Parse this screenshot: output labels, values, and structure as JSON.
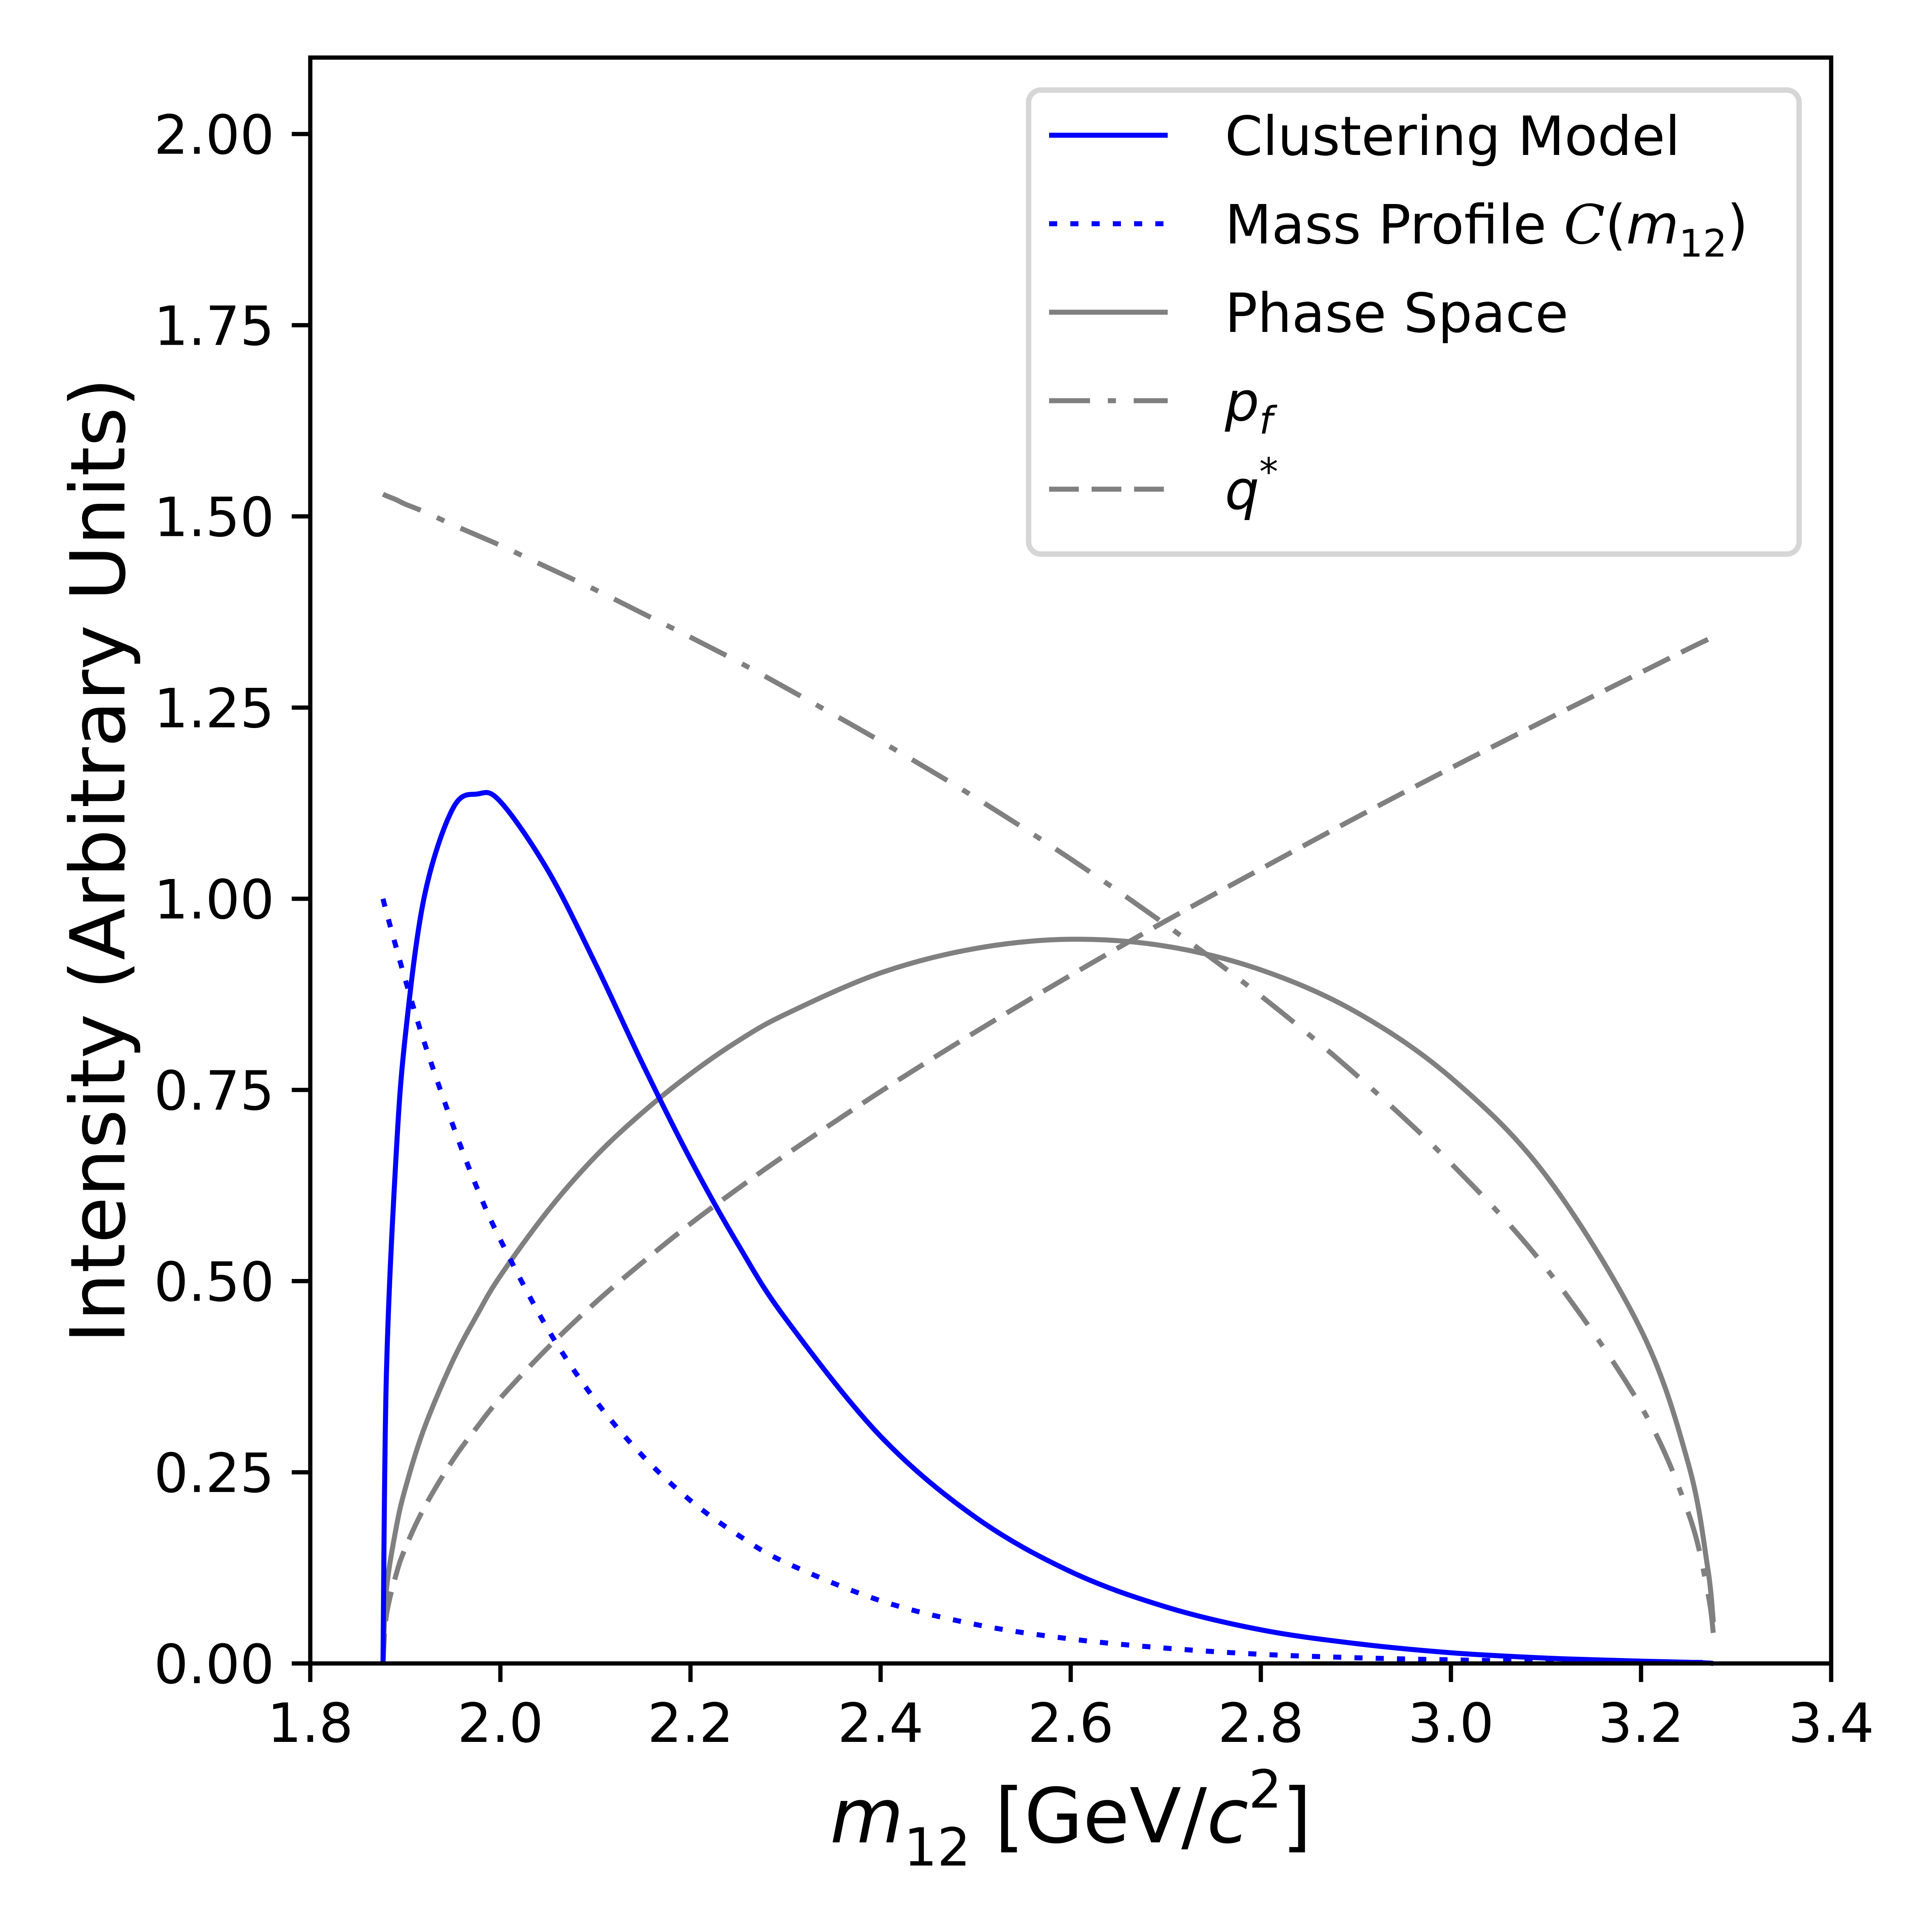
{
  "chart_data": {
    "type": "line",
    "title": "",
    "xlabel": "m12 [GeV/c2]",
    "xlabel_parts": {
      "var": "m",
      "sub": "12",
      "unit_open": " [GeV/",
      "unit_var": "c",
      "unit_sup": "2",
      "unit_close": "]"
    },
    "ylabel": "Intensity (Arbitrary Units)",
    "xlim": [
      1.8,
      3.4
    ],
    "ylim": [
      0.0,
      2.1
    ],
    "grid": false,
    "legend_position": "top-right",
    "xticks": [
      "1.8",
      "2.0",
      "2.2",
      "2.4",
      "2.6",
      "2.8",
      "3.0",
      "3.2",
      "3.4"
    ],
    "xtick_values": [
      1.8,
      2.0,
      2.2,
      2.4,
      2.6,
      2.8,
      3.0,
      3.2,
      3.4
    ],
    "yticks": [
      "0.00",
      "0.25",
      "0.50",
      "0.75",
      "1.00",
      "1.25",
      "1.50",
      "1.75",
      "2.00"
    ],
    "ytick_values": [
      0.0,
      0.25,
      0.5,
      0.75,
      1.0,
      1.25,
      1.5,
      1.75,
      2.0
    ],
    "x": [
      1.8765,
      1.88,
      1.89,
      1.9,
      1.92,
      1.95,
      1.976,
      2.0,
      2.05,
      2.1,
      2.15,
      2.2,
      2.25,
      2.3,
      2.4,
      2.5,
      2.6,
      2.7,
      2.8,
      2.9,
      3.0,
      3.1,
      3.2,
      3.25,
      3.27,
      3.276
    ],
    "series": [
      {
        "name": "Clustering Model",
        "legend_label": "Clustering Model",
        "color": "#0000ff",
        "style": "solid",
        "values": [
          0.0,
          0.374,
          0.658,
          0.821,
          1.003,
          1.118,
          1.137,
          1.127,
          1.037,
          0.915,
          0.783,
          0.659,
          0.548,
          0.451,
          0.297,
          0.191,
          0.12,
          0.074,
          0.044,
          0.026,
          0.014,
          0.007,
          0.003,
          0.0015,
          0.0006,
          0.0
        ]
      },
      {
        "name": "Mass Profile C(m12)",
        "legend_label": "Mass Profile ",
        "legend_math": "C",
        "legend_math_arg": "m",
        "legend_math_sub": "12",
        "color": "#0000ff",
        "style": "dotted",
        "values": [
          1.0,
          0.983,
          0.938,
          0.894,
          0.812,
          0.704,
          0.62,
          0.554,
          0.437,
          0.344,
          0.271,
          0.213,
          0.168,
          0.132,
          0.082,
          0.051,
          0.032,
          0.02,
          0.012,
          0.0075,
          0.0047,
          0.0029,
          0.0018,
          0.0014,
          0.0013,
          0.0013
        ]
      },
      {
        "name": "Phase Space",
        "legend_label": "Phase Space",
        "color": "#808080",
        "style": "solid",
        "values": [
          0.0,
          0.095,
          0.175,
          0.229,
          0.308,
          0.396,
          0.457,
          0.507,
          0.592,
          0.663,
          0.721,
          0.771,
          0.814,
          0.849,
          0.903,
          0.935,
          0.947,
          0.938,
          0.907,
          0.852,
          0.766,
          0.638,
          0.436,
          0.26,
          0.126,
          0.054
        ]
      },
      {
        "name": "p_f",
        "legend_label": "p",
        "legend_sub": "f",
        "color": "#808080",
        "style": "dashdot",
        "values": [
          1.529,
          1.527,
          1.522,
          1.516,
          1.506,
          1.489,
          1.475,
          1.462,
          1.433,
          1.404,
          1.373,
          1.342,
          1.31,
          1.276,
          1.206,
          1.132,
          1.052,
          0.966,
          0.873,
          0.77,
          0.654,
          0.517,
          0.336,
          0.196,
          0.094,
          0.04
        ]
      },
      {
        "name": "q*",
        "legend_label": "q",
        "legend_sup": "*",
        "color": "#808080",
        "style": "dashed",
        "values": [
          0.0,
          0.062,
          0.115,
          0.151,
          0.204,
          0.266,
          0.31,
          0.347,
          0.413,
          0.472,
          0.525,
          0.575,
          0.621,
          0.665,
          0.748,
          0.826,
          0.9,
          0.971,
          1.039,
          1.106,
          1.171,
          1.234,
          1.296,
          1.327,
          1.339,
          1.343
        ]
      }
    ]
  }
}
